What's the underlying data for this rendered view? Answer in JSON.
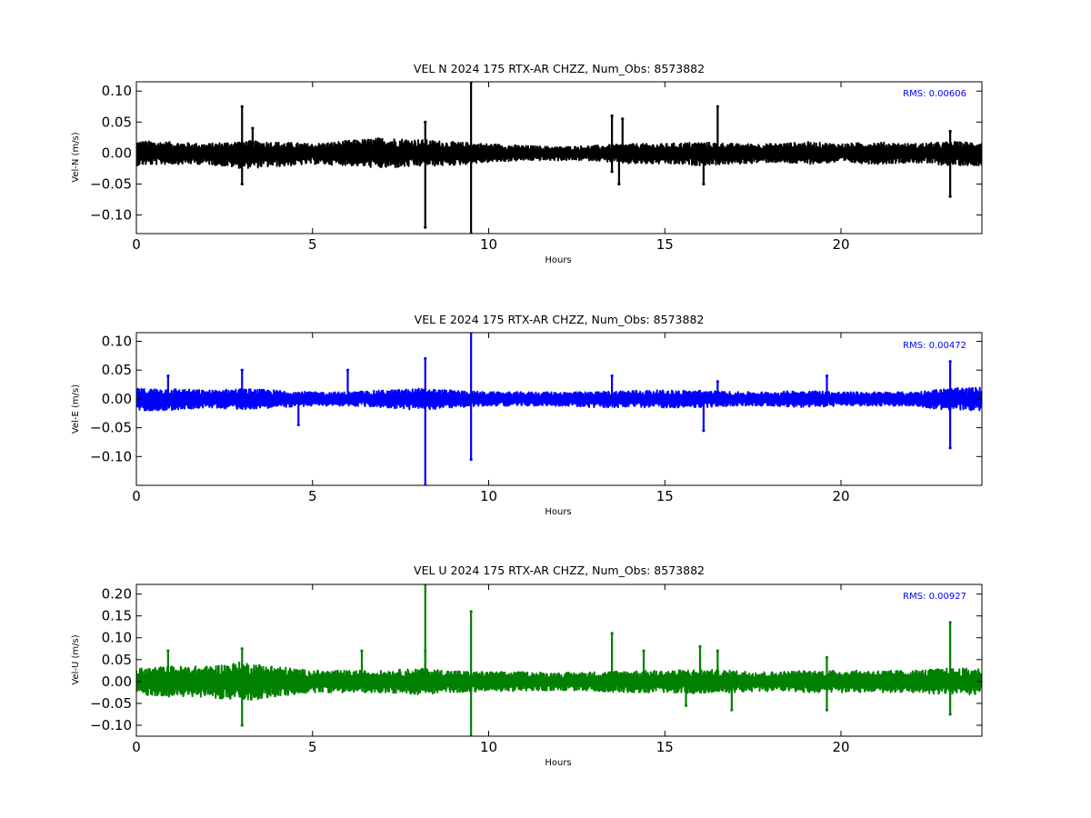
{
  "chart_data": [
    {
      "type": "line",
      "title": "VEL N 2024 175 RTX-AR  CHZZ, Num_Obs: 8573882",
      "xlabel": "Hours",
      "ylabel": "Vel-N (m/s)",
      "xlim": [
        0,
        24
      ],
      "ylim": [
        -0.13,
        0.115
      ],
      "xticks": [
        0,
        5,
        10,
        15,
        20
      ],
      "yticks": [
        0.1,
        0.05,
        0.0,
        -0.05,
        -0.1
      ],
      "ytick_labels": [
        "0.10",
        "0.05",
        "0.00",
        "−0.05",
        "−0.10"
      ],
      "rms_label": "RMS:  0.00606",
      "color": "#000000",
      "series": [
        {
          "noise_envelope": {
            "x": [
              0,
              1,
              2,
              3,
              4,
              5,
              6,
              7,
              8,
              9,
              10,
              11,
              12,
              13,
              14,
              15,
              16,
              17,
              18,
              19,
              20,
              21,
              22,
              23,
              24
            ],
            "upper": [
              0.02,
              0.018,
              0.015,
              0.02,
              0.018,
              0.015,
              0.02,
              0.025,
              0.022,
              0.018,
              0.015,
              0.012,
              0.01,
              0.012,
              0.015,
              0.015,
              0.018,
              0.015,
              0.015,
              0.018,
              0.015,
              0.018,
              0.015,
              0.018,
              0.018
            ],
            "lower": [
              -0.02,
              -0.018,
              -0.018,
              -0.025,
              -0.022,
              -0.018,
              -0.02,
              -0.025,
              -0.022,
              -0.02,
              -0.015,
              -0.012,
              -0.012,
              -0.012,
              -0.018,
              -0.018,
              -0.02,
              -0.018,
              -0.015,
              -0.018,
              -0.015,
              -0.018,
              -0.015,
              -0.02,
              -0.02
            ]
          },
          "spikes": [
            {
              "x": 3.0,
              "y": 0.075
            },
            {
              "x": 3.0,
              "y": -0.05
            },
            {
              "x": 3.3,
              "y": 0.04
            },
            {
              "x": 8.2,
              "y": 0.05
            },
            {
              "x": 8.2,
              "y": -0.12
            },
            {
              "x": 9.5,
              "y": 0.115
            },
            {
              "x": 9.5,
              "y": -0.13
            },
            {
              "x": 13.5,
              "y": 0.06
            },
            {
              "x": 13.5,
              "y": -0.03
            },
            {
              "x": 13.7,
              "y": -0.05
            },
            {
              "x": 13.8,
              "y": 0.055
            },
            {
              "x": 16.1,
              "y": -0.05
            },
            {
              "x": 16.5,
              "y": 0.075
            },
            {
              "x": 23.1,
              "y": 0.035
            },
            {
              "x": 23.1,
              "y": -0.07
            }
          ]
        }
      ]
    },
    {
      "type": "line",
      "title": "VEL E 2024 175 RTX-AR  CHZZ, Num_Obs: 8573882",
      "xlabel": "Hours",
      "ylabel": "Vel-E (m/s)",
      "xlim": [
        0,
        24
      ],
      "ylim": [
        -0.15,
        0.115
      ],
      "xticks": [
        0,
        5,
        10,
        15,
        20
      ],
      "yticks": [
        0.1,
        0.05,
        0.0,
        -0.05,
        -0.1
      ],
      "ytick_labels": [
        "0.10",
        "0.05",
        "0.00",
        "−0.05",
        "−0.10"
      ],
      "rms_label": "RMS:  0.00472",
      "color": "#0000ff",
      "series": [
        {
          "noise_envelope": {
            "x": [
              0,
              1,
              2,
              3,
              4,
              5,
              6,
              7,
              8,
              9,
              10,
              11,
              12,
              13,
              14,
              15,
              16,
              17,
              18,
              19,
              20,
              21,
              22,
              23,
              24
            ],
            "upper": [
              0.018,
              0.018,
              0.015,
              0.018,
              0.015,
              0.012,
              0.012,
              0.015,
              0.018,
              0.015,
              0.012,
              0.012,
              0.012,
              0.012,
              0.015,
              0.015,
              0.015,
              0.012,
              0.012,
              0.015,
              0.012,
              0.012,
              0.012,
              0.018,
              0.02
            ],
            "lower": [
              -0.02,
              -0.02,
              -0.015,
              -0.018,
              -0.015,
              -0.012,
              -0.012,
              -0.015,
              -0.02,
              -0.015,
              -0.012,
              -0.012,
              -0.012,
              -0.015,
              -0.015,
              -0.015,
              -0.015,
              -0.012,
              -0.012,
              -0.015,
              -0.012,
              -0.012,
              -0.012,
              -0.02,
              -0.02
            ]
          },
          "spikes": [
            {
              "x": 0.9,
              "y": 0.04
            },
            {
              "x": 3.0,
              "y": 0.05
            },
            {
              "x": 4.6,
              "y": -0.045
            },
            {
              "x": 6.0,
              "y": 0.05
            },
            {
              "x": 8.2,
              "y": 0.07
            },
            {
              "x": 8.2,
              "y": -0.15
            },
            {
              "x": 9.5,
              "y": 0.115
            },
            {
              "x": 9.5,
              "y": -0.105
            },
            {
              "x": 13.5,
              "y": 0.04
            },
            {
              "x": 16.1,
              "y": -0.055
            },
            {
              "x": 16.5,
              "y": 0.03
            },
            {
              "x": 19.6,
              "y": 0.04
            },
            {
              "x": 23.1,
              "y": 0.065
            },
            {
              "x": 23.1,
              "y": -0.085
            }
          ]
        }
      ]
    },
    {
      "type": "line",
      "title": "VEL U 2024 175 RTX-AR  CHZZ, Num_Obs: 8573882",
      "xlabel": "Hours",
      "ylabel": "Vel-U (m/s)",
      "xlim": [
        0,
        24
      ],
      "ylim": [
        -0.125,
        0.222
      ],
      "xticks": [
        0,
        5,
        10,
        15,
        20
      ],
      "yticks": [
        0.2,
        0.15,
        0.1,
        0.05,
        0.0,
        -0.05,
        -0.1
      ],
      "ytick_labels": [
        "0.20",
        "0.15",
        "0.10",
        "0.05",
        "0.00",
        "−0.05",
        "−0.10"
      ],
      "rms_label": "RMS:  0.00927",
      "color": "#008000",
      "series": [
        {
          "noise_envelope": {
            "x": [
              0,
              1,
              2,
              3,
              4,
              5,
              6,
              7,
              8,
              9,
              10,
              11,
              12,
              13,
              14,
              15,
              16,
              17,
              18,
              19,
              20,
              21,
              22,
              23,
              24
            ],
            "upper": [
              0.03,
              0.035,
              0.035,
              0.045,
              0.035,
              0.025,
              0.025,
              0.025,
              0.03,
              0.025,
              0.022,
              0.022,
              0.02,
              0.022,
              0.025,
              0.025,
              0.028,
              0.025,
              0.022,
              0.025,
              0.025,
              0.025,
              0.025,
              0.03,
              0.03
            ],
            "lower": [
              -0.03,
              -0.035,
              -0.035,
              -0.045,
              -0.035,
              -0.025,
              -0.025,
              -0.025,
              -0.03,
              -0.025,
              -0.022,
              -0.022,
              -0.02,
              -0.022,
              -0.025,
              -0.025,
              -0.028,
              -0.025,
              -0.022,
              -0.025,
              -0.025,
              -0.025,
              -0.025,
              -0.03,
              -0.03
            ]
          },
          "spikes": [
            {
              "x": 0.9,
              "y": 0.07
            },
            {
              "x": 3.0,
              "y": 0.075
            },
            {
              "x": 3.0,
              "y": -0.1
            },
            {
              "x": 6.4,
              "y": 0.07
            },
            {
              "x": 8.2,
              "y": 0.222
            },
            {
              "x": 8.2,
              "y": 0.07
            },
            {
              "x": 9.5,
              "y": 0.16
            },
            {
              "x": 9.5,
              "y": -0.125
            },
            {
              "x": 13.5,
              "y": 0.11
            },
            {
              "x": 14.4,
              "y": 0.07
            },
            {
              "x": 15.6,
              "y": -0.055
            },
            {
              "x": 16.0,
              "y": 0.08
            },
            {
              "x": 16.5,
              "y": 0.07
            },
            {
              "x": 16.9,
              "y": -0.065
            },
            {
              "x": 19.6,
              "y": 0.055
            },
            {
              "x": 19.6,
              "y": -0.065
            },
            {
              "x": 23.1,
              "y": 0.135
            },
            {
              "x": 23.1,
              "y": -0.075
            }
          ]
        }
      ]
    }
  ]
}
